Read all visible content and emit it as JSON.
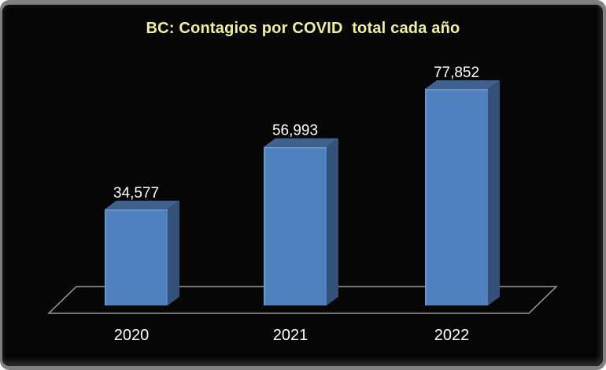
{
  "frame": {
    "border_color": "#808080",
    "panel_background": "#060606"
  },
  "chart_data": {
    "type": "bar",
    "variant": "3d-column",
    "title": "BC: Contagios por COVID  total cada año",
    "categories": [
      "2020",
      "2021",
      "2022"
    ],
    "values": [
      34577,
      56993,
      77852
    ],
    "value_labels": [
      "34,577",
      "56,993",
      "77,852"
    ],
    "xlabel": "",
    "ylabel": "",
    "ylim": [
      0,
      77852
    ],
    "grid": false,
    "legend": false,
    "colors": {
      "bar_front": "#4F81BE",
      "bar_top": "#3E6190",
      "bar_side": "#345179",
      "bar_edge_highlight": "rgba(255,255,255,0.22)",
      "floor_line": "#9A9A9A",
      "data_label": "#FFFFFF",
      "category_label": "#FFFFFF",
      "title": "#F0F0A0",
      "background": "#060606",
      "frame": "#808080"
    }
  }
}
